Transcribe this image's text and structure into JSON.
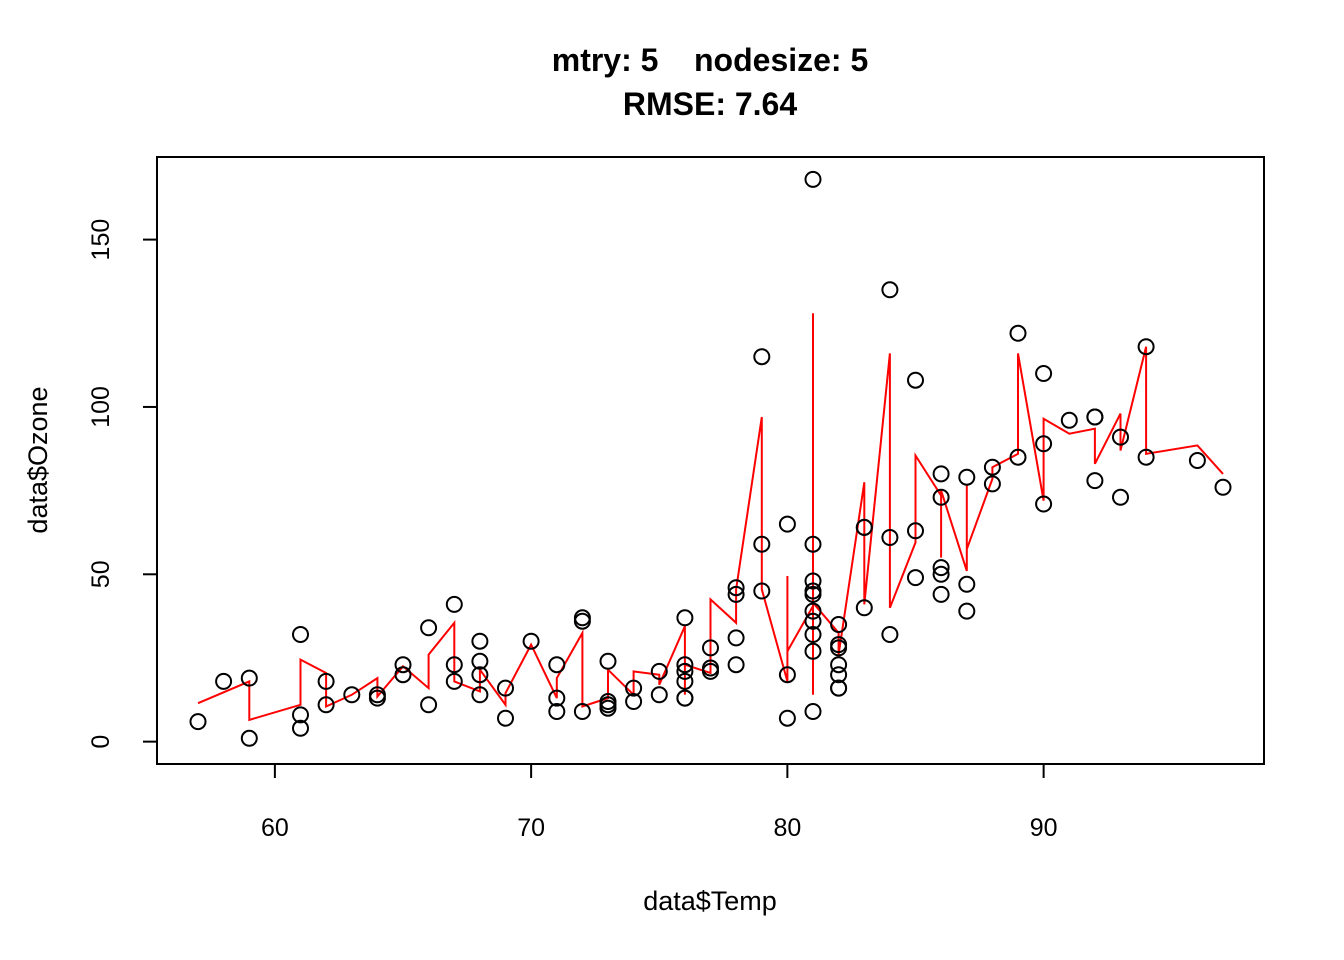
{
  "chart_data": {
    "type": "scatter",
    "title": "mtry: 5    nodesize: 5",
    "subtitle": "RMSE: 7.64",
    "xlabel": "data$Temp",
    "ylabel": "data$Ozone",
    "xlim": [
      55.4,
      98.6
    ],
    "ylim": [
      -6.68,
      174.68
    ],
    "xticks": [
      "60",
      "70",
      "80",
      "90"
    ],
    "yticks": [
      "0",
      "50",
      "100",
      "150"
    ],
    "series": [
      {
        "kind": "points",
        "marker": "open-circle",
        "color": "#000000",
        "points": [
          [
            57,
            6
          ],
          [
            58,
            18
          ],
          [
            59,
            19
          ],
          [
            59,
            1
          ],
          [
            61,
            32
          ],
          [
            61,
            8
          ],
          [
            61,
            4
          ],
          [
            62,
            18
          ],
          [
            62,
            11
          ],
          [
            63,
            14
          ],
          [
            64,
            14
          ],
          [
            64,
            13
          ],
          [
            65,
            23
          ],
          [
            65,
            20
          ],
          [
            66,
            34
          ],
          [
            66,
            11
          ],
          [
            67,
            41
          ],
          [
            67,
            23
          ],
          [
            67,
            18
          ],
          [
            68,
            30
          ],
          [
            68,
            24
          ],
          [
            68,
            20
          ],
          [
            68,
            14
          ],
          [
            69,
            16
          ],
          [
            69,
            7
          ],
          [
            70,
            30
          ],
          [
            71,
            23
          ],
          [
            71,
            13
          ],
          [
            71,
            9
          ],
          [
            72,
            37
          ],
          [
            72,
            36
          ],
          [
            72,
            9
          ],
          [
            73,
            24
          ],
          [
            73,
            12
          ],
          [
            73,
            11
          ],
          [
            73,
            10
          ],
          [
            74,
            16
          ],
          [
            74,
            12
          ],
          [
            75,
            21
          ],
          [
            75,
            14
          ],
          [
            76,
            37
          ],
          [
            76,
            23
          ],
          [
            76,
            21
          ],
          [
            76,
            18
          ],
          [
            76,
            13
          ],
          [
            76,
            13
          ],
          [
            77,
            28
          ],
          [
            77,
            22
          ],
          [
            77,
            21
          ],
          [
            78,
            46
          ],
          [
            78,
            44
          ],
          [
            78,
            31
          ],
          [
            78,
            23
          ],
          [
            79,
            115
          ],
          [
            79,
            59
          ],
          [
            79,
            45
          ],
          [
            80,
            65
          ],
          [
            80,
            20
          ],
          [
            80,
            7
          ],
          [
            81,
            168
          ],
          [
            81,
            59
          ],
          [
            81,
            48
          ],
          [
            81,
            45
          ],
          [
            81,
            44
          ],
          [
            81,
            39
          ],
          [
            81,
            36
          ],
          [
            81,
            32
          ],
          [
            81,
            27
          ],
          [
            81,
            9
          ],
          [
            82,
            35
          ],
          [
            82,
            29
          ],
          [
            82,
            28
          ],
          [
            82,
            23
          ],
          [
            82,
            20
          ],
          [
            82,
            16
          ],
          [
            82,
            16
          ],
          [
            83,
            64
          ],
          [
            83,
            64
          ],
          [
            83,
            40
          ],
          [
            84,
            135
          ],
          [
            84,
            61
          ],
          [
            84,
            32
          ],
          [
            85,
            108
          ],
          [
            85,
            63
          ],
          [
            85,
            49
          ],
          [
            86,
            80
          ],
          [
            86,
            73
          ],
          [
            86,
            52
          ],
          [
            86,
            50
          ],
          [
            86,
            44
          ],
          [
            87,
            79
          ],
          [
            87,
            47
          ],
          [
            87,
            39
          ],
          [
            88,
            82
          ],
          [
            88,
            77
          ],
          [
            89,
            122
          ],
          [
            89,
            85
          ],
          [
            90,
            110
          ],
          [
            90,
            89
          ],
          [
            90,
            71
          ],
          [
            91,
            96
          ],
          [
            92,
            97
          ],
          [
            92,
            97
          ],
          [
            92,
            78
          ],
          [
            93,
            91
          ],
          [
            93,
            73
          ],
          [
            94,
            118
          ],
          [
            94,
            85
          ],
          [
            96,
            84
          ],
          [
            97,
            76
          ]
        ]
      },
      {
        "kind": "line",
        "color": "#ff0000",
        "points": [
          [
            57,
            11.5
          ],
          [
            59,
            18
          ],
          [
            59,
            6.5
          ],
          [
            61,
            11
          ],
          [
            61,
            24.5
          ],
          [
            62,
            20.5
          ],
          [
            62,
            10.5
          ],
          [
            63,
            14
          ],
          [
            64,
            19
          ],
          [
            64,
            13.5
          ],
          [
            65,
            22.5
          ],
          [
            66,
            16
          ],
          [
            66,
            26
          ],
          [
            67,
            35.5
          ],
          [
            67,
            18
          ],
          [
            68,
            15
          ],
          [
            68,
            21.5
          ],
          [
            69,
            11
          ],
          [
            69,
            14.5
          ],
          [
            70,
            29
          ],
          [
            71,
            13
          ],
          [
            71,
            19
          ],
          [
            72,
            32.5
          ],
          [
            72,
            10.5
          ],
          [
            73,
            13
          ],
          [
            73,
            21.5
          ],
          [
            74,
            14
          ],
          [
            74,
            21
          ],
          [
            75,
            20
          ],
          [
            75,
            17
          ],
          [
            76,
            34.5
          ],
          [
            76,
            14
          ],
          [
            76,
            23
          ],
          [
            77,
            20.5
          ],
          [
            77,
            42.5
          ],
          [
            78,
            35.5
          ],
          [
            78,
            45.5
          ],
          [
            79,
            97
          ],
          [
            79,
            45.5
          ],
          [
            80,
            18
          ],
          [
            80,
            49.5
          ],
          [
            80,
            27
          ],
          [
            81,
            40.5
          ],
          [
            81,
            14
          ],
          [
            81,
            128
          ],
          [
            81,
            41.5
          ],
          [
            82,
            32.5
          ],
          [
            82,
            26
          ],
          [
            83,
            77.5
          ],
          [
            83,
            41
          ],
          [
            84,
            116
          ],
          [
            84,
            40
          ],
          [
            85,
            59.5
          ],
          [
            85,
            85.5
          ],
          [
            86,
            73.5
          ],
          [
            86,
            55
          ],
          [
            86,
            75
          ],
          [
            87,
            51
          ],
          [
            87,
            77
          ],
          [
            87,
            57.5
          ],
          [
            88,
            78.5
          ],
          [
            88,
            82
          ],
          [
            89,
            86
          ],
          [
            89,
            116
          ],
          [
            90,
            72
          ],
          [
            90,
            96.5
          ],
          [
            91,
            92
          ],
          [
            92,
            93.5
          ],
          [
            92,
            83
          ],
          [
            93,
            98
          ],
          [
            93,
            87
          ],
          [
            94,
            118
          ],
          [
            94,
            86
          ],
          [
            96,
            88.5
          ],
          [
            97,
            80
          ]
        ]
      }
    ],
    "grid": false,
    "legend": "none"
  }
}
